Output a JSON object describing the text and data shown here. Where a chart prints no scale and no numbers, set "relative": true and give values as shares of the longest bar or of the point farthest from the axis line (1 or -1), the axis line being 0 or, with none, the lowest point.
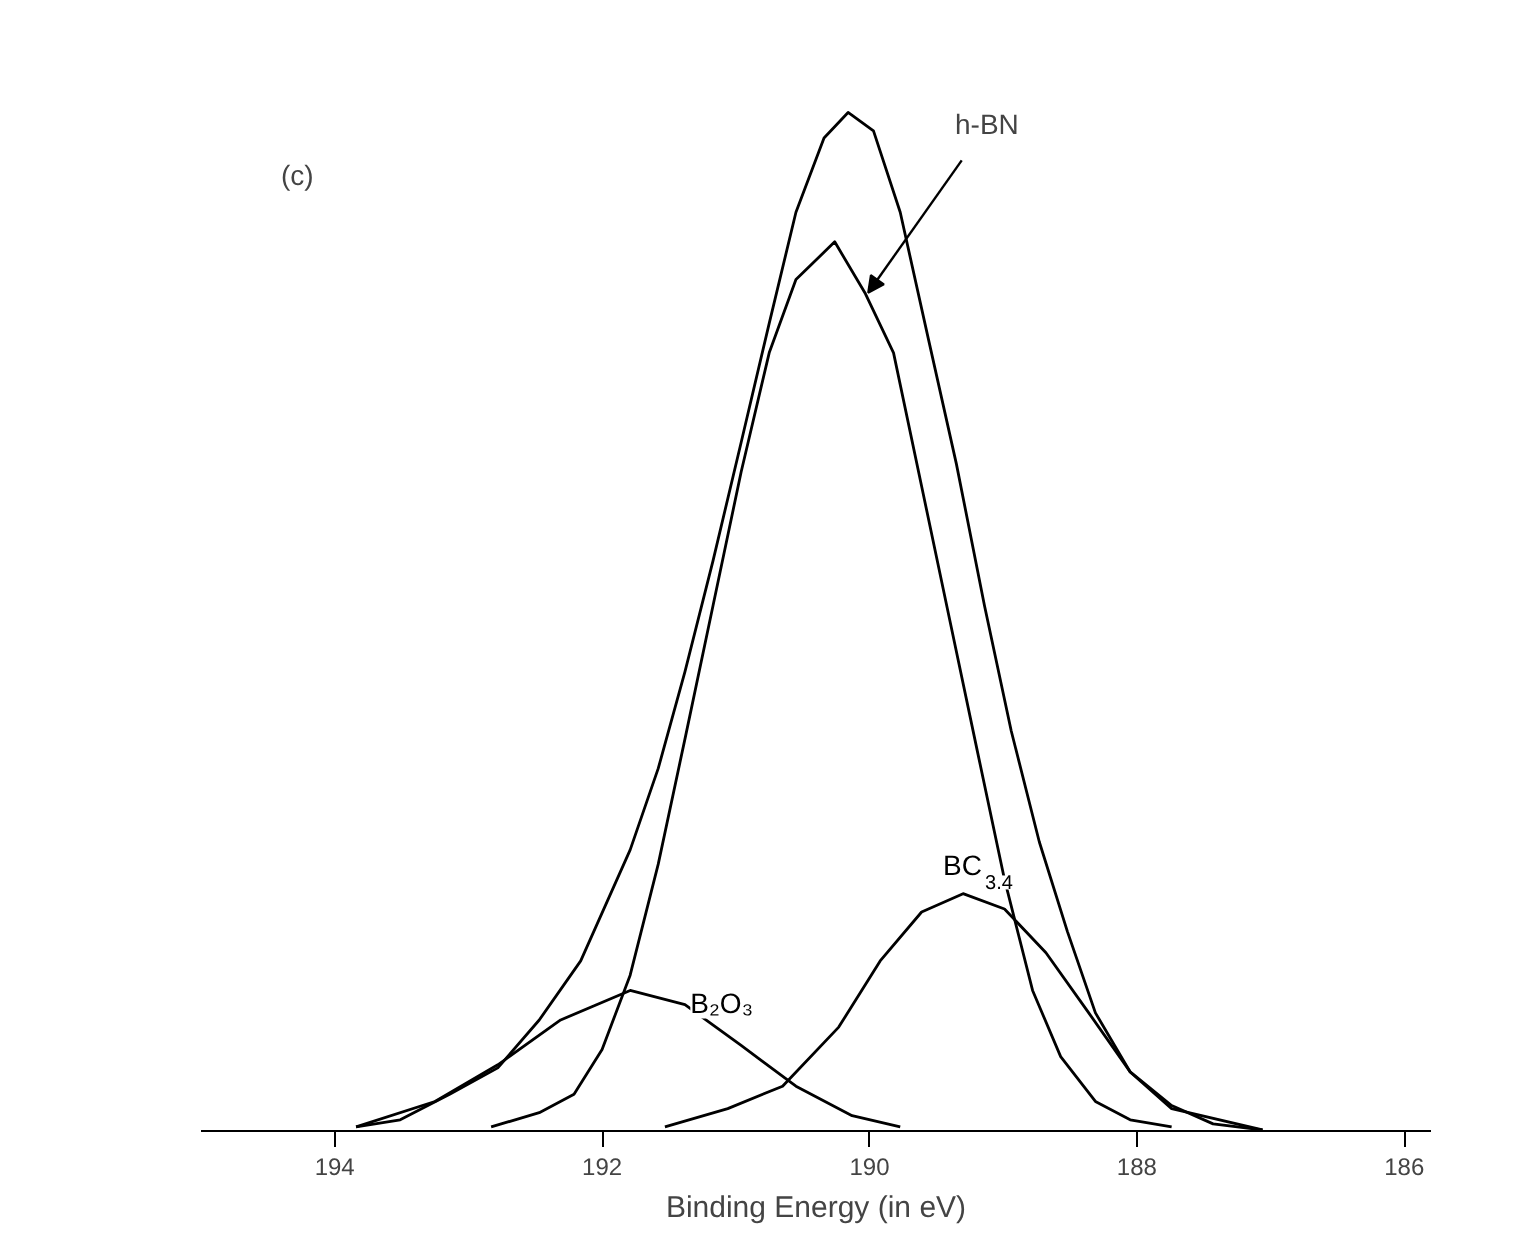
{
  "chart_data": {
    "type": "line",
    "relative": true,
    "xlabel": "Binding Energy (in eV)",
    "xlim": [
      195,
      185.8
    ],
    "xticks": [
      194,
      192,
      190,
      188,
      186
    ],
    "grid": false,
    "legend": false,
    "marker": "none",
    "line_style": "solid",
    "annotations": [
      "(c)"
    ],
    "series": [
      {
        "color": "#000000",
        "x": [
          193.84,
          193.51,
          193.14,
          192.78,
          192.47,
          192.16,
          191.79,
          191.58,
          191.38,
          191.17,
          190.96,
          190.75,
          190.55,
          190.34,
          190.16,
          189.97,
          189.77,
          189.56,
          189.35,
          189.14,
          188.94,
          188.73,
          188.52,
          188.31,
          188.05,
          187.74,
          187.43,
          187.06
        ],
        "values": [
          0.004,
          0.011,
          0.036,
          0.062,
          0.109,
          0.167,
          0.276,
          0.356,
          0.451,
          0.56,
          0.676,
          0.793,
          0.902,
          0.975,
          1.0,
          0.982,
          0.902,
          0.778,
          0.655,
          0.516,
          0.393,
          0.284,
          0.196,
          0.116,
          0.058,
          0.025,
          0.007,
          0.001
        ]
      },
      {
        "name": "h-BN",
        "color": "#000000",
        "x": [
          192.83,
          192.47,
          192.21,
          192.0,
          191.79,
          191.58,
          191.38,
          191.17,
          190.96,
          190.75,
          190.55,
          190.26,
          190.03,
          189.82,
          189.61,
          189.4,
          189.19,
          188.99,
          188.78,
          188.57,
          188.31,
          188.05,
          187.74
        ],
        "values": [
          0.004,
          0.018,
          0.036,
          0.08,
          0.153,
          0.262,
          0.385,
          0.516,
          0.647,
          0.764,
          0.836,
          0.873,
          0.822,
          0.764,
          0.633,
          0.502,
          0.371,
          0.247,
          0.138,
          0.073,
          0.029,
          0.011,
          0.004
        ]
      },
      {
        "name": "B₂O₃",
        "color": "#000000",
        "x": [
          193.84,
          193.25,
          192.78,
          192.31,
          191.79,
          191.38,
          190.96,
          190.55,
          190.13,
          189.77
        ],
        "values": [
          0.004,
          0.029,
          0.065,
          0.109,
          0.138,
          0.124,
          0.084,
          0.044,
          0.015,
          0.004
        ]
      },
      {
        "name": "BC$_{3.4}$",
        "color": "#000000",
        "x": [
          191.53,
          191.06,
          190.65,
          190.23,
          189.92,
          189.61,
          189.3,
          188.99,
          188.68,
          188.36,
          188.05,
          187.74,
          187.06
        ],
        "values": [
          0.004,
          0.022,
          0.044,
          0.102,
          0.167,
          0.215,
          0.233,
          0.218,
          0.175,
          0.116,
          0.058,
          0.022,
          0.001
        ]
      }
    ]
  }
}
